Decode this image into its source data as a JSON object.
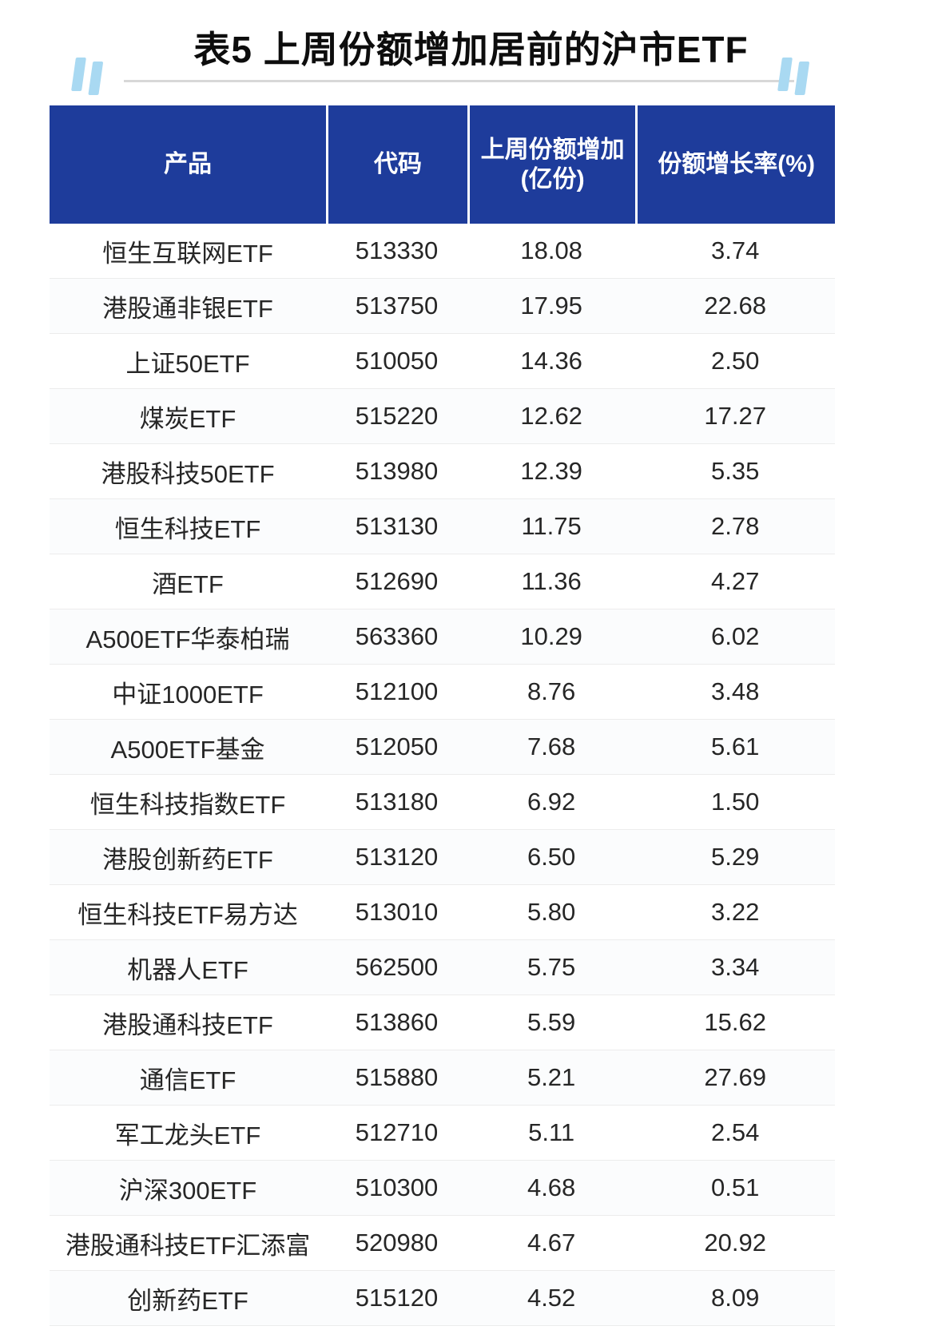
{
  "page": {
    "title": "表5 上周份额增加居前的沪市ETF"
  },
  "colors": {
    "header_bg": "#1e3c9b",
    "header_text": "#ffffff",
    "accent_light_blue": "#a9d9f2",
    "body_text": "#262626",
    "divider": "#d8d8d8"
  },
  "chart_data": {
    "type": "table",
    "title": "表5 上周份额增加居前的沪市ETF",
    "columns": {
      "product": "产品",
      "code": "代码",
      "increase": "上周份额增加\n(亿份)",
      "rate": "份额增长率(%)"
    },
    "rows": [
      {
        "name": "恒生互联网ETF",
        "code": "513330",
        "increase": "18.08",
        "rate": "3.74"
      },
      {
        "name": "港股通非银ETF",
        "code": "513750",
        "increase": "17.95",
        "rate": "22.68"
      },
      {
        "name": "上证50ETF",
        "code": "510050",
        "increase": "14.36",
        "rate": "2.50"
      },
      {
        "name": "煤炭ETF",
        "code": "515220",
        "increase": "12.62",
        "rate": "17.27"
      },
      {
        "name": "港股科技50ETF",
        "code": "513980",
        "increase": "12.39",
        "rate": "5.35"
      },
      {
        "name": "恒生科技ETF",
        "code": "513130",
        "increase": "11.75",
        "rate": "2.78"
      },
      {
        "name": "酒ETF",
        "code": "512690",
        "increase": "11.36",
        "rate": "4.27"
      },
      {
        "name": "A500ETF华泰柏瑞",
        "code": "563360",
        "increase": "10.29",
        "rate": "6.02"
      },
      {
        "name": "中证1000ETF",
        "code": "512100",
        "increase": "8.76",
        "rate": "3.48"
      },
      {
        "name": "A500ETF基金",
        "code": "512050",
        "increase": "7.68",
        "rate": "5.61"
      },
      {
        "name": "恒生科技指数ETF",
        "code": "513180",
        "increase": "6.92",
        "rate": "1.50"
      },
      {
        "name": "港股创新药ETF",
        "code": "513120",
        "increase": "6.50",
        "rate": "5.29"
      },
      {
        "name": "恒生科技ETF易方达",
        "code": "513010",
        "increase": "5.80",
        "rate": "3.22"
      },
      {
        "name": "机器人ETF",
        "code": "562500",
        "increase": "5.75",
        "rate": "3.34"
      },
      {
        "name": "港股通科技ETF",
        "code": "513860",
        "increase": "5.59",
        "rate": "15.62"
      },
      {
        "name": "通信ETF",
        "code": "515880",
        "increase": "5.21",
        "rate": "27.69"
      },
      {
        "name": "军工龙头ETF",
        "code": "512710",
        "increase": "5.11",
        "rate": "2.54"
      },
      {
        "name": "沪深300ETF",
        "code": "510300",
        "increase": "4.68",
        "rate": "0.51"
      },
      {
        "name": "港股通科技ETF汇添富",
        "code": "520980",
        "increase": "4.67",
        "rate": "20.92"
      },
      {
        "name": "创新药ETF",
        "code": "515120",
        "increase": "4.52",
        "rate": "8.09"
      }
    ]
  }
}
